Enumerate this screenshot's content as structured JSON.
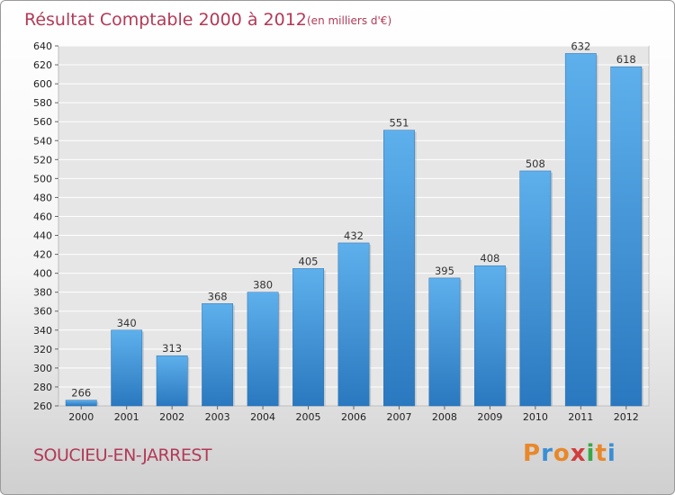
{
  "chart_data": {
    "type": "bar",
    "title": "Résultat Comptable 2000 à 2012",
    "subtitle": "(en milliers d'€)",
    "categories": [
      "2000",
      "2001",
      "2002",
      "2003",
      "2004",
      "2005",
      "2006",
      "2007",
      "2008",
      "2009",
      "2010",
      "2011",
      "2012"
    ],
    "values": [
      266,
      340,
      313,
      368,
      380,
      405,
      432,
      551,
      395,
      408,
      508,
      632,
      618
    ],
    "ylim": [
      260,
      640
    ],
    "yticks": [
      260,
      280,
      300,
      320,
      340,
      360,
      380,
      400,
      420,
      440,
      460,
      480,
      500,
      520,
      540,
      560,
      580,
      600,
      620,
      640
    ],
    "grid": true,
    "bar_color": "#3f95d6"
  },
  "footer": {
    "place": "SOUCIEU-EN-JARREST",
    "logo": [
      "P",
      "r",
      "o",
      "x",
      "i",
      "t",
      "i"
    ],
    "logo_colors": [
      "#e8882a",
      "#3a8fd6",
      "#e8882a",
      "#d23c3c",
      "#3aa845",
      "#e8882a",
      "#3a8fd6"
    ]
  }
}
